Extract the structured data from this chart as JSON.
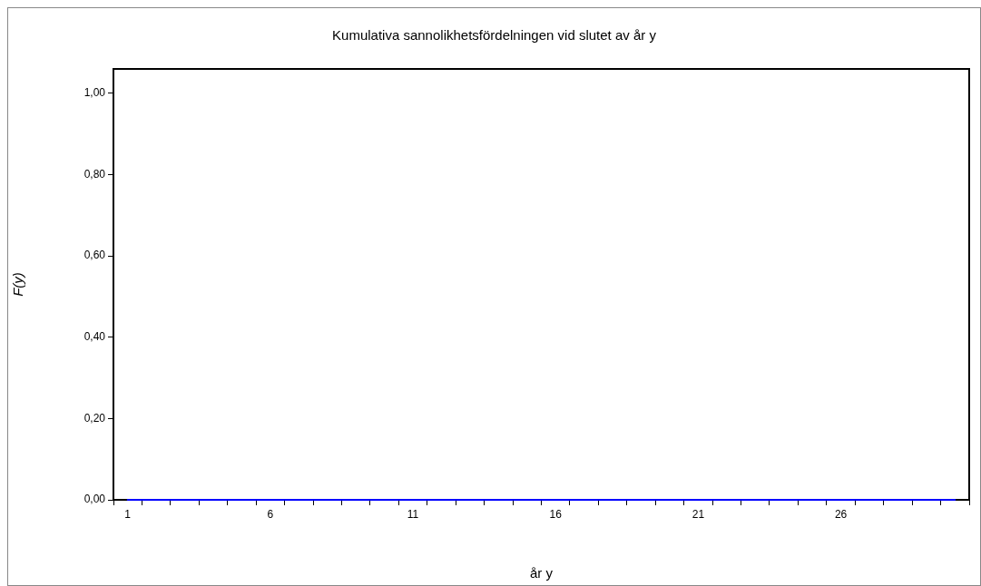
{
  "chart_data": {
    "type": "line",
    "title": "Kumulativa sannolikhetsfördelningen vid slutet av år y",
    "xlabel": "år y",
    "ylabel": "F(y)",
    "categories": [
      "1",
      null,
      null,
      null,
      null,
      "6",
      null,
      null,
      null,
      null,
      "11",
      null,
      null,
      null,
      null,
      "16",
      null,
      null,
      null,
      null,
      "21",
      null,
      null,
      null,
      null,
      "26",
      null,
      null,
      null,
      null
    ],
    "series": [
      {
        "color": "#0000ff",
        "values": [
          0,
          0,
          0,
          0,
          0,
          0,
          0,
          0,
          0,
          0,
          0,
          0,
          0,
          0,
          0,
          0,
          0,
          0,
          0,
          0,
          0,
          0,
          0,
          0,
          0,
          0,
          0,
          0,
          0,
          0
        ]
      }
    ],
    "ylim": [
      0,
      1.06
    ],
    "yticks": [
      {
        "value": 0,
        "label": "0,00"
      },
      {
        "value": 0.2,
        "label": "0,20"
      },
      {
        "value": 0.4,
        "label": "0,40"
      },
      {
        "value": 0.6,
        "label": "0,60"
      },
      {
        "value": 0.8,
        "label": "0,80"
      },
      {
        "value": 1,
        "label": "1,00"
      }
    ],
    "grid": false,
    "legend": false,
    "marker": "none",
    "line_style": "solid"
  }
}
